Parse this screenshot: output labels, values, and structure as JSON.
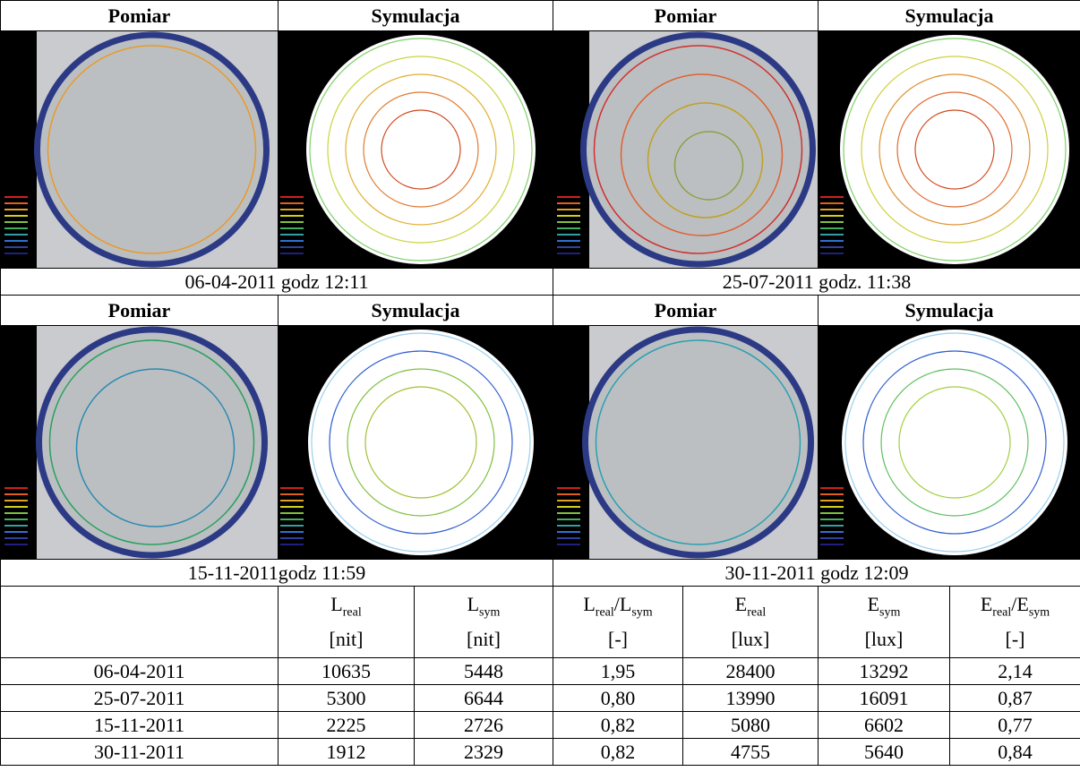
{
  "sections": [
    {
      "left": {
        "measurement": "Pomiar",
        "simulation": "Symulacja",
        "caption": "06-04-2011 godz 12:11"
      },
      "right": {
        "measurement": "Pomiar",
        "simulation": "Symulacja",
        "caption": "25-07-2011 godz. 11:38"
      }
    },
    {
      "left": {
        "measurement": "Pomiar",
        "simulation": "Symulacja",
        "caption": "15-11-2011godz 11:59"
      },
      "right": {
        "measurement": "Pomiar",
        "simulation": "Symulacja",
        "caption": "30-11-2011 godz 12:09"
      }
    }
  ],
  "table": {
    "columns": [
      {
        "symbol": [
          {
            "base": "L",
            "sub": "real"
          }
        ],
        "unit": "[nit]"
      },
      {
        "symbol": [
          {
            "base": "L",
            "sub": "sym"
          }
        ],
        "unit": "[nit]"
      },
      {
        "symbol": [
          {
            "base": "L",
            "sub": "real"
          },
          {
            "base": "/L",
            "sub": "sym"
          }
        ],
        "unit": "[-]"
      },
      {
        "symbol": [
          {
            "base": "E",
            "sub": "real"
          }
        ],
        "unit": "[lux]"
      },
      {
        "symbol": [
          {
            "base": "E",
            "sub": "sym"
          }
        ],
        "unit": "[lux]"
      },
      {
        "symbol": [
          {
            "base": "E",
            "sub": "real"
          },
          {
            "base": "/E",
            "sub": "sym"
          }
        ],
        "unit": "[-]"
      }
    ],
    "rows": [
      [
        "06-04-2011",
        "10635",
        "5448",
        "1,95",
        "28400",
        "13292",
        "2,14"
      ],
      [
        "25-07-2011",
        "5300",
        "6644",
        "0,80",
        "13990",
        "16091",
        "0,87"
      ],
      [
        "15-11-2011",
        "2225",
        "2726",
        "0,82",
        "5080",
        "6602",
        "0,77"
      ],
      [
        "30-11-2011",
        "1912",
        "2329",
        "0,82",
        "4755",
        "5640",
        "0,84"
      ]
    ]
  }
}
